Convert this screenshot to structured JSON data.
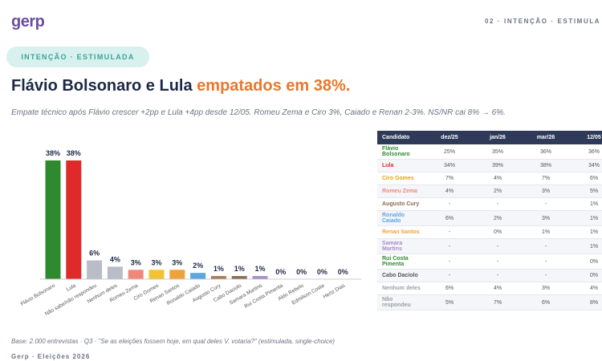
{
  "header": {
    "logo": "gerp",
    "section": "02 · INTENÇÃO · ESTIMULA",
    "pill": "INTENÇÃO · ESTIMULADA",
    "title": "Flávio Bolsonaro e Lula ",
    "title_highlight": "empatados em 38%.",
    "subtitle": "Empate técnico após Flávio crescer +2pp e Lula +4pp desde 12/05. Romeu Zema e Ciro 3%, Caiado e Renan 2-3%. NS/NR cai 8% → 6%."
  },
  "chart_data": {
    "type": "bar",
    "categories": [
      "Flávio Bolsonaro",
      "Lula",
      "Não sabe/não respondeu",
      "Nenhum deles",
      "Romeu Zema",
      "Ciro Gomes",
      "Renan Santos",
      "Ronaldo Caiado",
      "Augusto Cury",
      "Cabo Daciolo",
      "Samara Martins",
      "Rui Costa Pimenta",
      "Aldo Rebelo",
      "Edmilson Costa",
      "Hertz Dias"
    ],
    "values": [
      38,
      38,
      6,
      4,
      3,
      3,
      3,
      2,
      1,
      1,
      1,
      0,
      0,
      0,
      0
    ],
    "value_labels": [
      "38%",
      "38%",
      "6%",
      "4%",
      "3%",
      "3%",
      "3%",
      "2%",
      "1%",
      "1%",
      "1%",
      "0%",
      "0%",
      "0%",
      "0%"
    ],
    "colors": [
      "#2f8a2f",
      "#df2a2a",
      "#b8bdc7",
      "#b8bdc7",
      "#f0887a",
      "#f3c232",
      "#f0a23a",
      "#5aa6df",
      "#a67b55",
      "#8b6b52",
      "#a88bc9",
      "#cfc6d6",
      "#cfc6d6",
      "#cfc6d6",
      "#cfc6d6"
    ]
  },
  "table": {
    "columns": [
      "Candidato",
      "dez/25",
      "jan/26",
      "mar/26",
      "12/05"
    ],
    "rows": [
      [
        "Flávio Bolsonaro",
        "25%",
        "35%",
        "36%",
        "36%"
      ],
      [
        "Lula",
        "34%",
        "39%",
        "38%",
        "34%"
      ],
      [
        "Ciro Gomes",
        "7%",
        "4%",
        "7%",
        "6%"
      ],
      [
        "Romeu Zema",
        "4%",
        "2%",
        "3%",
        "5%"
      ],
      [
        "Augusto Cury",
        "-",
        "-",
        "-",
        "1%"
      ],
      [
        "Ronaldo Caiado",
        "6%",
        "2%",
        "3%",
        "1%"
      ],
      [
        "Renan Santos",
        "-",
        "0%",
        "1%",
        "1%"
      ],
      [
        "Samara Martins",
        "-",
        "-",
        "-",
        "1%"
      ],
      [
        "Rui Costa Pimenta",
        "-",
        "-",
        "-",
        "0%"
      ],
      [
        "Cabo Daciolo",
        "-",
        "-",
        "-",
        "0%"
      ],
      [
        "Nenhum deles",
        "6%",
        "4%",
        "3%",
        "4%"
      ],
      [
        "Não respondeu",
        "5%",
        "7%",
        "6%",
        "8%"
      ]
    ],
    "row_colors": [
      "#2f8a2f",
      "#df2a2a",
      "#e0a800",
      "#f0887a",
      "#8b6b52",
      "#5aa6df",
      "#f0a23a",
      "#a88bc9",
      "#2f8a2f",
      "#555555",
      "#9aa0aa",
      "#9aa0aa"
    ]
  },
  "footer": {
    "note": "Base: 2.000 entrevistas · Q3 · \"Se as eleições fossem hoje, em qual deles V. votaria?\" (estimulada, single-choice)",
    "brand": "Gerp · Eleições 2026"
  }
}
